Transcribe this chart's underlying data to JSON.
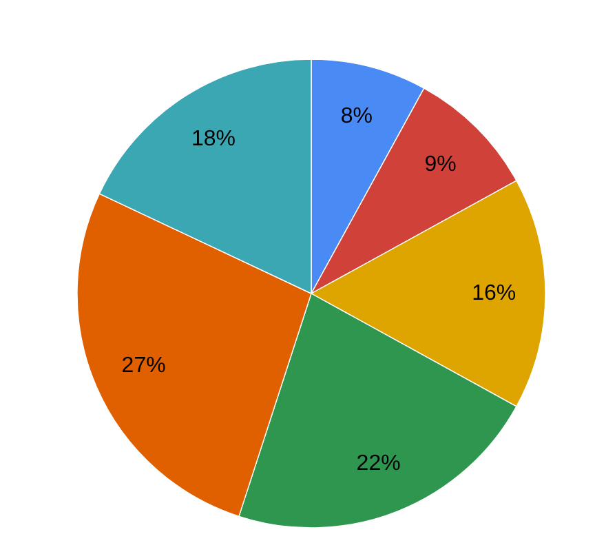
{
  "chart_data": {
    "type": "pie",
    "categories": [
      null,
      null,
      null,
      null,
      null,
      null
    ],
    "values": [
      8,
      9,
      16,
      22,
      27,
      18
    ],
    "colors": [
      "#4a8af4",
      "#d0413a",
      "#dea500",
      "#2f9650",
      "#e06000",
      "#3ba7b3"
    ],
    "value_labels": [
      "8%",
      "9%",
      "16%",
      "22%",
      "27%",
      "18%"
    ]
  }
}
